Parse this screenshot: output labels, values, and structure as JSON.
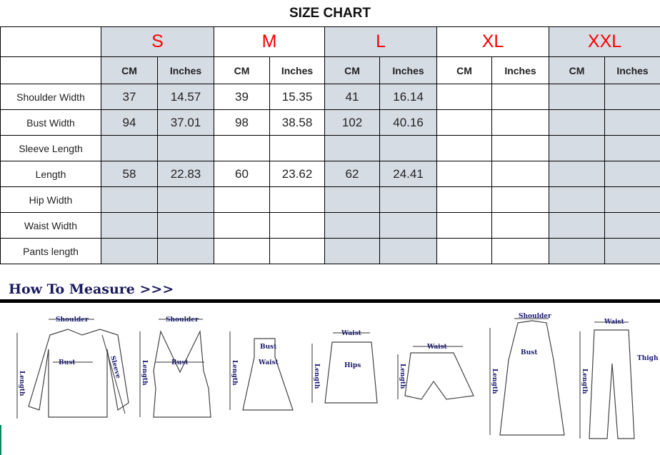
{
  "title": "SIZE CHART",
  "sizes": [
    "S",
    "M",
    "L",
    "XL",
    "XXL"
  ],
  "units": [
    "CM",
    "Inches"
  ],
  "rows": [
    {
      "label": "Shoulder Width",
      "values": [
        "37",
        "14.57",
        "39",
        "15.35",
        "41",
        "16.14",
        "",
        "",
        "",
        ""
      ]
    },
    {
      "label": "Bust Width",
      "values": [
        "94",
        "37.01",
        "98",
        "38.58",
        "102",
        "40.16",
        "",
        "",
        "",
        ""
      ]
    },
    {
      "label": "Sleeve Length",
      "values": [
        "",
        "",
        "",
        "",
        "",
        "",
        "",
        "",
        "",
        ""
      ]
    },
    {
      "label": "Length",
      "values": [
        "58",
        "22.83",
        "60",
        "23.62",
        "62",
        "24.41",
        "",
        "",
        "",
        ""
      ]
    },
    {
      "label": "Hip Width",
      "values": [
        "",
        "",
        "",
        "",
        "",
        "",
        "",
        "",
        "",
        ""
      ]
    },
    {
      "label": "Waist Width",
      "values": [
        "",
        "",
        "",
        "",
        "",
        "",
        "",
        "",
        "",
        ""
      ]
    },
    {
      "label": "Pants length",
      "values": [
        "",
        "",
        "",
        "",
        "",
        "",
        "",
        "",
        "",
        ""
      ]
    }
  ],
  "how_to_measure": {
    "heading": "How To Measure >>>",
    "labels": {
      "shoulder": "Shoulder",
      "bust": "Bust",
      "sleeve": "Sleeve",
      "length": "Length",
      "waist": "Waist",
      "hips": "Hips",
      "thigh": "Thigh"
    }
  },
  "colors": {
    "size_label": "#ff0000",
    "shaded": "#d6dce4",
    "heading": "#1a1a5e"
  }
}
